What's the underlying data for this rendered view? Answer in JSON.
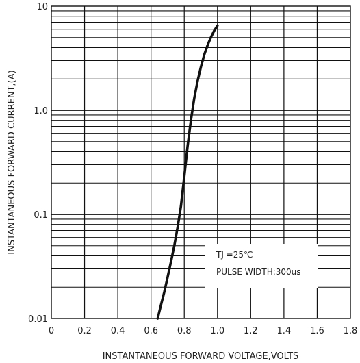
{
  "chart_data": {
    "type": "line",
    "title": "",
    "xlabel": "INSTANTANEOUS FORWARD VOLTAGE,VOLTS",
    "ylabel": "INSTANTANEOUS FORWARD CURRENT,(A)",
    "x_scale": "linear",
    "y_scale": "log",
    "xlim": [
      0,
      1.8
    ],
    "ylim": [
      0.01,
      10
    ],
    "x_ticks": [
      "0",
      "0.2",
      "0.4",
      "0.6",
      "0.8",
      "1.0",
      "1.2",
      "1.4",
      "1.6",
      "1.8"
    ],
    "y_ticks": [
      "0.01",
      "0.1",
      "1.0",
      "10"
    ],
    "grid": true,
    "series": [
      {
        "x": [
          0.64,
          0.66,
          0.68,
          0.7,
          0.72,
          0.74,
          0.76,
          0.78,
          0.8,
          0.82,
          0.84,
          0.86,
          0.88,
          0.9,
          0.92,
          0.94,
          0.96,
          0.98,
          1.0
        ],
        "y": [
          0.01,
          0.0135,
          0.018,
          0.025,
          0.035,
          0.05,
          0.075,
          0.12,
          0.23,
          0.45,
          0.8,
          1.3,
          1.9,
          2.6,
          3.4,
          4.2,
          5.0,
          5.8,
          6.5
        ]
      }
    ],
    "annotations": [
      "TJ =25℃",
      "PULSE WIDTH:300us"
    ]
  }
}
